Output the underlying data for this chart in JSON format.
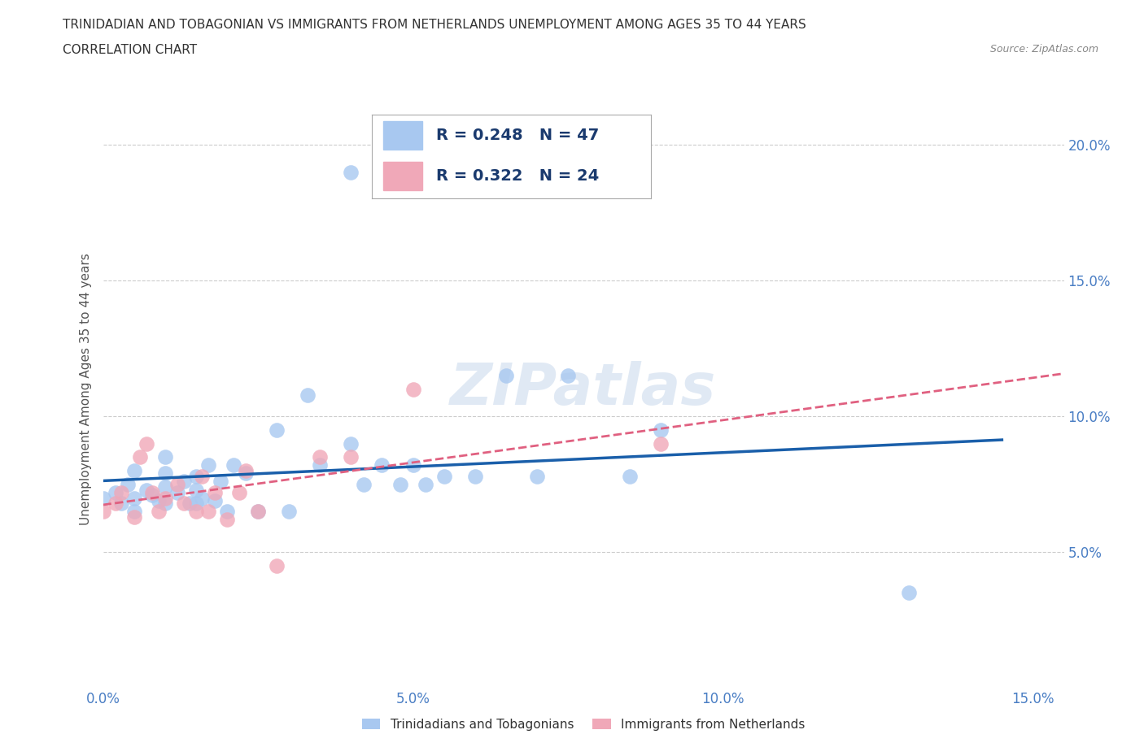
{
  "title_line1": "TRINIDADIAN AND TOBAGONIAN VS IMMIGRANTS FROM NETHERLANDS UNEMPLOYMENT AMONG AGES 35 TO 44 YEARS",
  "title_line2": "CORRELATION CHART",
  "source_text": "Source: ZipAtlas.com",
  "ylabel": "Unemployment Among Ages 35 to 44 years",
  "xlim": [
    0.0,
    0.155
  ],
  "ylim": [
    0.0,
    0.22
  ],
  "xticks": [
    0.0,
    0.025,
    0.05,
    0.075,
    0.1,
    0.125,
    0.15
  ],
  "xticklabels": [
    "0.0%",
    "",
    "5.0%",
    "",
    "10.0%",
    "",
    "15.0%"
  ],
  "yticks": [
    0.05,
    0.1,
    0.15,
    0.2
  ],
  "yticklabels": [
    "5.0%",
    "10.0%",
    "15.0%",
    "20.0%"
  ],
  "blue_color": "#a8c8f0",
  "pink_color": "#f0a8b8",
  "trend_blue": "#1a5faa",
  "trend_pink": "#e06080",
  "grid_color": "#cccccc",
  "blue_scatter_x": [
    0.0,
    0.002,
    0.003,
    0.004,
    0.005,
    0.005,
    0.005,
    0.007,
    0.008,
    0.009,
    0.01,
    0.01,
    0.01,
    0.01,
    0.012,
    0.013,
    0.014,
    0.015,
    0.015,
    0.015,
    0.016,
    0.017,
    0.018,
    0.019,
    0.02,
    0.021,
    0.023,
    0.025,
    0.028,
    0.03,
    0.033,
    0.035,
    0.04,
    0.042,
    0.045,
    0.048,
    0.05,
    0.052,
    0.055,
    0.06,
    0.065,
    0.07,
    0.075,
    0.085,
    0.09,
    0.13,
    0.04
  ],
  "blue_scatter_y": [
    0.07,
    0.072,
    0.068,
    0.075,
    0.07,
    0.065,
    0.08,
    0.073,
    0.071,
    0.069,
    0.068,
    0.074,
    0.079,
    0.085,
    0.072,
    0.076,
    0.068,
    0.073,
    0.068,
    0.078,
    0.07,
    0.082,
    0.069,
    0.076,
    0.065,
    0.082,
    0.079,
    0.065,
    0.095,
    0.065,
    0.108,
    0.082,
    0.09,
    0.075,
    0.082,
    0.075,
    0.082,
    0.075,
    0.078,
    0.078,
    0.115,
    0.078,
    0.115,
    0.078,
    0.095,
    0.035,
    0.19
  ],
  "pink_scatter_x": [
    0.0,
    0.002,
    0.003,
    0.005,
    0.006,
    0.007,
    0.008,
    0.009,
    0.01,
    0.012,
    0.013,
    0.015,
    0.016,
    0.017,
    0.018,
    0.02,
    0.022,
    0.023,
    0.025,
    0.028,
    0.035,
    0.04,
    0.05,
    0.09
  ],
  "pink_scatter_y": [
    0.065,
    0.068,
    0.072,
    0.063,
    0.085,
    0.09,
    0.072,
    0.065,
    0.07,
    0.075,
    0.068,
    0.065,
    0.078,
    0.065,
    0.072,
    0.062,
    0.072,
    0.08,
    0.065,
    0.045,
    0.085,
    0.085,
    0.11,
    0.09
  ],
  "legend_text_color": "#1a3a6e"
}
